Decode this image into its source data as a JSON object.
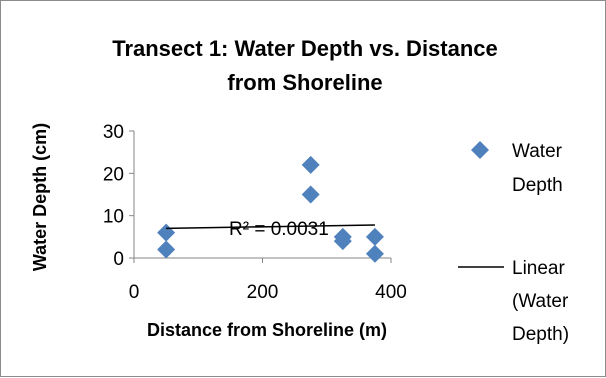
{
  "chart_data": {
    "type": "scatter",
    "title_line1": "Transect 1: Water Depth vs. Distance",
    "title_line2": "from Shoreline",
    "xlabel": "Distance from Shoreline (m)",
    "ylabel": "Water Depth (cm)",
    "xlim": [
      0,
      400
    ],
    "ylim": [
      0,
      30
    ],
    "xticks": [
      0,
      200,
      400
    ],
    "yticks": [
      0,
      10,
      20,
      30
    ],
    "grid": false,
    "series": [
      {
        "name": "Water Depth",
        "marker": "diamond",
        "color": "#4f81bd",
        "points": [
          {
            "x": 50,
            "y": 6
          },
          {
            "x": 50,
            "y": 2
          },
          {
            "x": 275,
            "y": 22
          },
          {
            "x": 275,
            "y": 15
          },
          {
            "x": 325,
            "y": 5
          },
          {
            "x": 325,
            "y": 4
          },
          {
            "x": 375,
            "y": 5
          },
          {
            "x": 375,
            "y": 1
          }
        ]
      }
    ],
    "trendline": {
      "legend_lines": [
        "Linear",
        "(Water",
        "Depth)"
      ],
      "type": "linear",
      "color": "#000000",
      "x_range": [
        50,
        375
      ],
      "y_at_start": 7,
      "y_at_end": 7.8,
      "r2_label": "R² = 0.0031"
    },
    "legend": {
      "position": "right",
      "series_lines": [
        "Water",
        "Depth"
      ]
    }
  }
}
